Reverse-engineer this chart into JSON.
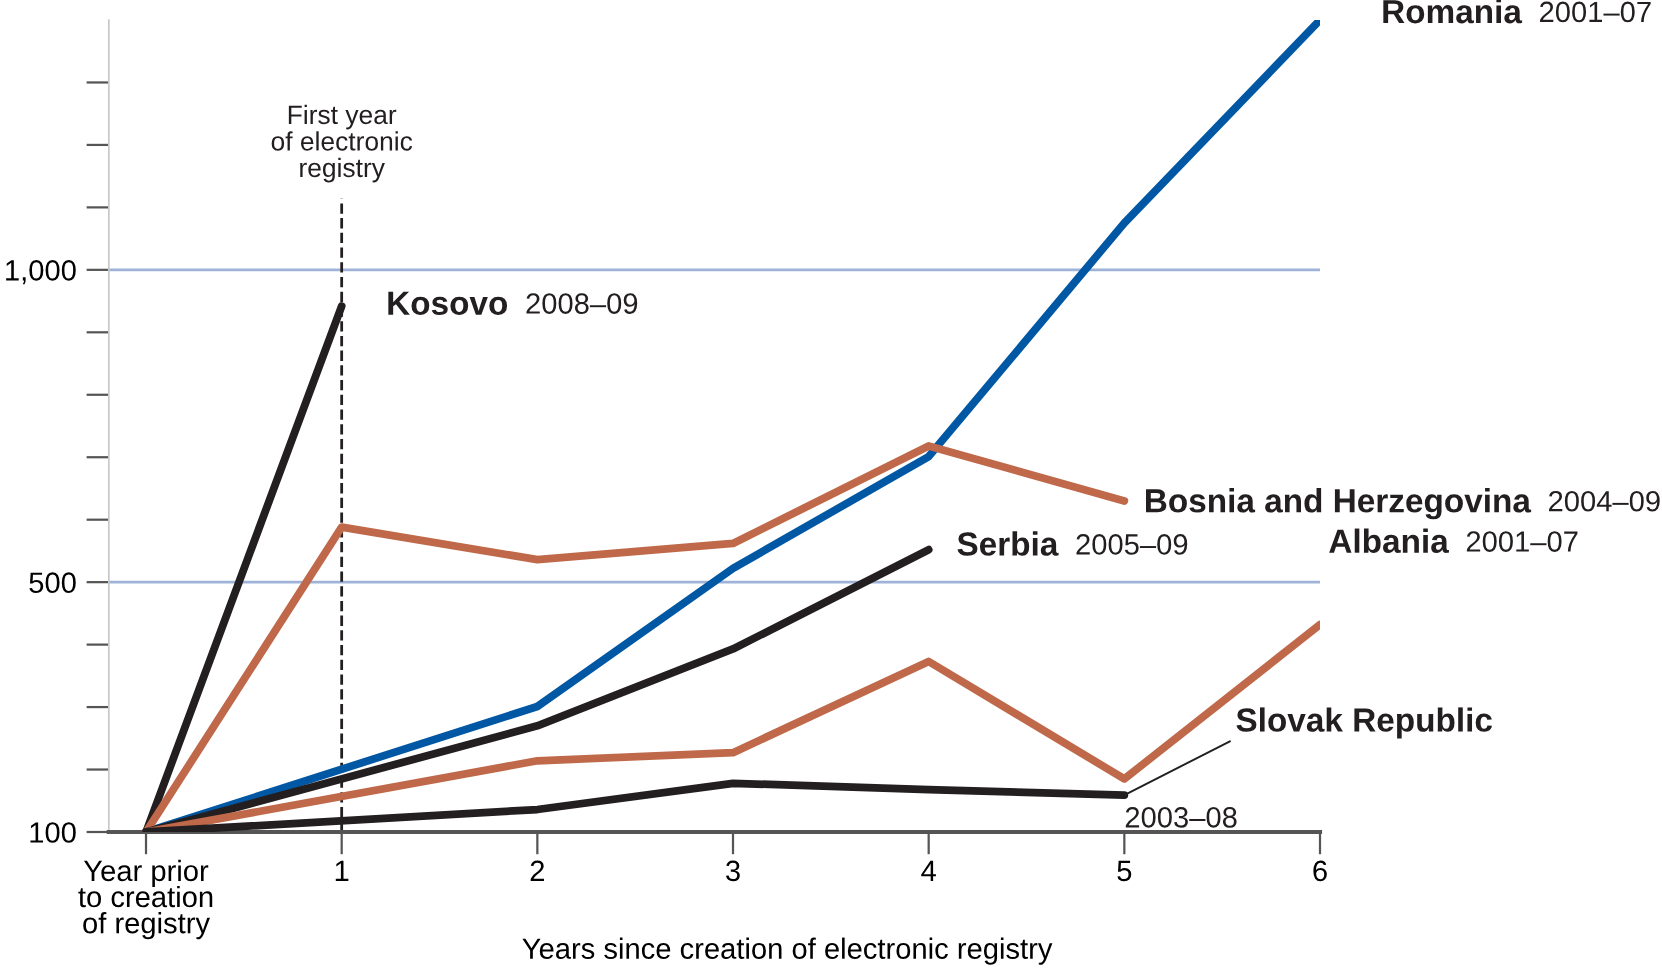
{
  "chart_data": {
    "type": "line",
    "xlabel": "Years since creation of electronic registry",
    "xlim": [
      -0.19,
      6
    ],
    "xticks": [
      {
        "value": 0,
        "label": "Year prior\nto creation\nof registry"
      },
      1,
      2,
      3,
      4,
      5,
      6
    ],
    "ylim": [
      100,
      1400
    ],
    "yticks": [
      {
        "value": 100,
        "label": "100"
      },
      {
        "value": 200,
        "label": null
      },
      {
        "value": 300,
        "label": null
      },
      {
        "value": 400,
        "label": null
      },
      {
        "value": 500,
        "label": "500"
      },
      {
        "value": 600,
        "label": null
      },
      {
        "value": 700,
        "label": null
      },
      {
        "value": 800,
        "label": null
      },
      {
        "value": 900,
        "label": null
      },
      {
        "value": 1000,
        "label": "1,000"
      },
      {
        "value": 1100,
        "label": null
      },
      {
        "value": 1200,
        "label": null
      },
      {
        "value": 1300,
        "label": null
      }
    ],
    "grid": false,
    "legend": false,
    "marker": "none",
    "line_style": "solid",
    "ref_lines": [
      {
        "axis": "y",
        "value": 500,
        "label": null,
        "color": "#9fb3d9"
      },
      {
        "axis": "y",
        "value": 1000,
        "label": null,
        "color": "#9fb3d9"
      },
      {
        "axis": "x",
        "value": 1,
        "label": "First year\nof electronic\nregistry",
        "color": "#231f20",
        "line_style": "dashed"
      }
    ],
    "series": [
      {
        "name": "Romania",
        "color": "#0057a4",
        "x": [
          0,
          2,
          3,
          4,
          5,
          6
        ],
        "values": [
          100,
          301,
          522,
          701,
          1075,
          1400
        ]
      },
      {
        "name": "Kosovo",
        "color": "#231f20",
        "x": [
          0,
          1
        ],
        "values": [
          100,
          942
        ]
      },
      {
        "name": "Bosnia and Herzegovina",
        "color": "#c0694a",
        "x": [
          0,
          1,
          2,
          3,
          4,
          5
        ],
        "values": [
          100,
          588,
          536,
          562,
          718,
          630
        ]
      },
      {
        "name": "Serbia",
        "color": "#231f20",
        "x": [
          0,
          2,
          3,
          4
        ],
        "values": [
          100,
          270,
          393,
          552
        ]
      },
      {
        "name": "Albania",
        "color": "#c0694a",
        "x": [
          0,
          2,
          3,
          4,
          5,
          6
        ],
        "values": [
          100,
          214,
          227,
          373,
          185,
          432
        ]
      },
      {
        "name": "Slovak Republic",
        "color": "#231f20",
        "x": [
          0,
          2,
          3,
          4,
          5
        ],
        "values": [
          100,
          136,
          178,
          168,
          159
        ]
      }
    ],
    "annotations": [
      "2001–07",
      "2008–09",
      "2004–09",
      "2005–09",
      "2001–07",
      "2003–08"
    ]
  }
}
